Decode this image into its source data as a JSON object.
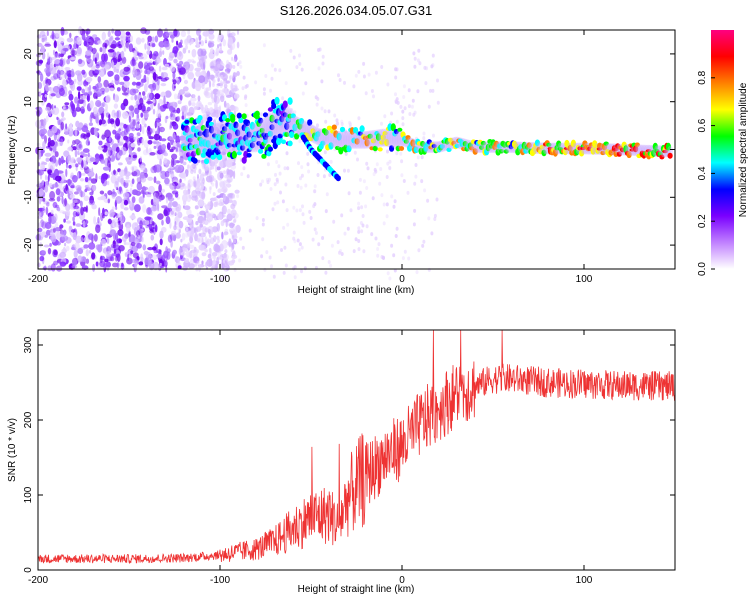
{
  "title": "S126.2026.034.05.07.G31",
  "chart_data": [
    {
      "type": "heatmap",
      "panel": "spectrogram",
      "xlabel": "Height of straight line (km)",
      "ylabel": "Frequency (Hz)",
      "xlim": [
        -200,
        150
      ],
      "ylim": [
        -25,
        25
      ],
      "xticks": [
        -200,
        -100,
        0,
        100
      ],
      "xtick_labels": [
        "-200",
        "-100",
        "0",
        "100"
      ],
      "yticks": [
        -20,
        -10,
        0,
        10,
        20
      ],
      "ytick_labels": [
        "-20",
        "-10",
        "0",
        "10",
        "20"
      ],
      "ridge": {
        "x": [
          -120,
          -100,
          -80,
          -66,
          -60,
          -55,
          -50,
          -45,
          -40,
          -35,
          -30,
          -20,
          -10,
          0,
          10,
          20,
          30,
          40,
          60,
          80,
          100,
          120,
          150
        ],
        "y": [
          1.5,
          2.5,
          2.5,
          6,
          5.5,
          4.5,
          3.5,
          2.5,
          2.5,
          2,
          2,
          2,
          2.5,
          2,
          0.5,
          0.5,
          1.5,
          0.5,
          0.5,
          0.2,
          0.2,
          0,
          -0.5
        ]
      },
      "branch": {
        "x": [
          -55,
          -50,
          -45,
          -40,
          -35
        ],
        "y": [
          3,
          0,
          -2,
          -4,
          -6
        ]
      },
      "colorbar": {
        "label": "Normalized spectral amplitude",
        "range": [
          0,
          1
        ],
        "ticks": [
          0.0,
          0.2,
          0.4,
          0.6,
          0.8
        ],
        "tick_labels": [
          "0.0",
          "0.2",
          "0.4",
          "0.6",
          "0.8"
        ],
        "colors": [
          "#ffffff",
          "#c080ff",
          "#7a00ff",
          "#0000ff",
          "#00ffff",
          "#00ff00",
          "#ffff00",
          "#ff8000",
          "#ff0000",
          "#ff0080"
        ]
      }
    },
    {
      "type": "line",
      "panel": "snr",
      "xlabel": "Height of straight line (km)",
      "ylabel": "SNR (10 * v/v)",
      "xlim": [
        -200,
        150
      ],
      "ylim": [
        0,
        320
      ],
      "xticks": [
        -200,
        -100,
        0,
        100
      ],
      "xtick_labels": [
        "-200",
        "-100",
        "0",
        "100"
      ],
      "yticks": [
        0,
        100,
        200,
        300
      ],
      "ytick_labels": [
        "0",
        "100",
        "200",
        "300"
      ],
      "color": "#ee3333",
      "envelope": {
        "x": [
          -200,
          -150,
          -120,
          -100,
          -80,
          -70,
          -60,
          -50,
          -40,
          -35,
          -30,
          -20,
          -10,
          0,
          10,
          20,
          30,
          40,
          50,
          60,
          80,
          100,
          120,
          150
        ],
        "y": [
          15,
          15,
          16,
          20,
          28,
          38,
          55,
          70,
          75,
          60,
          95,
          125,
          150,
          165,
          195,
          215,
          235,
          245,
          255,
          255,
          250,
          248,
          246,
          245
        ]
      }
    }
  ]
}
